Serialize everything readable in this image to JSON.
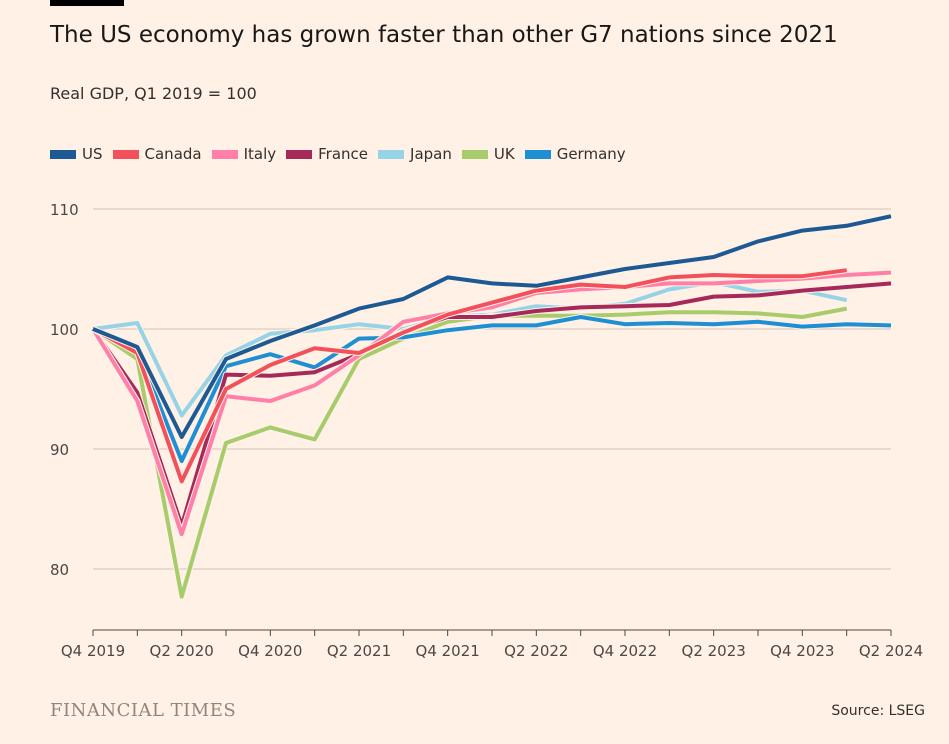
{
  "chart_data": {
    "type": "line",
    "title": "The US economy has grown faster than other G7 nations since 2021",
    "subtitle": "Real GDP, Q1 2019 = 100",
    "xlabel": "",
    "ylabel": "",
    "x": [
      "Q4 2019",
      "Q1 2020",
      "Q2 2020",
      "Q3 2020",
      "Q4 2020",
      "Q1 2021",
      "Q2 2021",
      "Q3 2021",
      "Q4 2021",
      "Q1 2022",
      "Q2 2022",
      "Q3 2022",
      "Q4 2022",
      "Q1 2023",
      "Q2 2023",
      "Q3 2023",
      "Q4 2023",
      "Q1 2024",
      "Q2 2024"
    ],
    "x_tick_labels": [
      "Q4 2019",
      "Q2 2020",
      "Q4 2020",
      "Q2 2021",
      "Q4 2021",
      "Q2 2022",
      "Q4 2022",
      "Q2 2023",
      "Q4 2023",
      "Q2 2024"
    ],
    "y_ticks": [
      80,
      90,
      100,
      110
    ],
    "ylim": [
      75,
      111.5
    ],
    "grid": true,
    "legend_position": "top-left",
    "series": [
      {
        "name": "Japan",
        "color": "#96d3e6",
        "values": [
          100,
          100.5,
          92.8,
          97.8,
          99.6,
          99.9,
          100.4,
          100,
          101,
          101.2,
          101.9,
          101.7,
          102.1,
          103.3,
          103.9,
          103.1,
          103.2,
          102.4,
          null
        ]
      },
      {
        "name": "UK",
        "color": "#a8cc6c",
        "values": [
          100,
          97.5,
          77.7,
          90.5,
          91.8,
          90.8,
          97.5,
          99.2,
          100.6,
          101.1,
          101.1,
          101.1,
          101.2,
          101.4,
          101.4,
          101.3,
          101,
          101.7,
          null
        ]
      },
      {
        "name": "Germany",
        "color": "#1f8fd4",
        "values": [
          100,
          98.3,
          89,
          96.9,
          97.9,
          96.8,
          99.2,
          99.3,
          99.9,
          100.3,
          100.3,
          101,
          100.4,
          100.5,
          100.4,
          100.6,
          100.2,
          100.4,
          100.3
        ]
      },
      {
        "name": "France",
        "color": "#a52a5a",
        "values": [
          100,
          94.7,
          83.6,
          96.2,
          96.1,
          96.4,
          97.9,
          99.8,
          101,
          101,
          101.5,
          101.8,
          101.9,
          102,
          102.7,
          102.8,
          103.2,
          103.5,
          103.8
        ]
      },
      {
        "name": "Italy",
        "color": "#ff7fa8",
        "values": [
          100,
          94,
          82.9,
          94.4,
          94,
          95.3,
          97.8,
          100.6,
          101.3,
          101.8,
          103,
          103.3,
          103.5,
          103.8,
          103.8,
          104,
          104.2,
          104.5,
          104.7
        ]
      },
      {
        "name": "Canada",
        "color": "#f2515b",
        "values": [
          100,
          98,
          87.3,
          95,
          97,
          98.4,
          98,
          99.7,
          101.2,
          102.2,
          103.2,
          103.7,
          103.5,
          104.3,
          104.5,
          104.4,
          104.4,
          104.9,
          null
        ]
      },
      {
        "name": "US",
        "color": "#1d5a94",
        "values": [
          100,
          98.5,
          91,
          97.5,
          99,
          100.3,
          101.7,
          102.5,
          104.3,
          103.8,
          103.6,
          104.3,
          105,
          105.5,
          106,
          107.3,
          108.2,
          108.6,
          109.4
        ]
      }
    ],
    "legend_order": [
      "US",
      "Canada",
      "Italy",
      "France",
      "Japan",
      "UK",
      "Germany"
    ]
  },
  "footer": {
    "brand": "FINANCIAL TIMES",
    "source": "Source: LSEG"
  }
}
